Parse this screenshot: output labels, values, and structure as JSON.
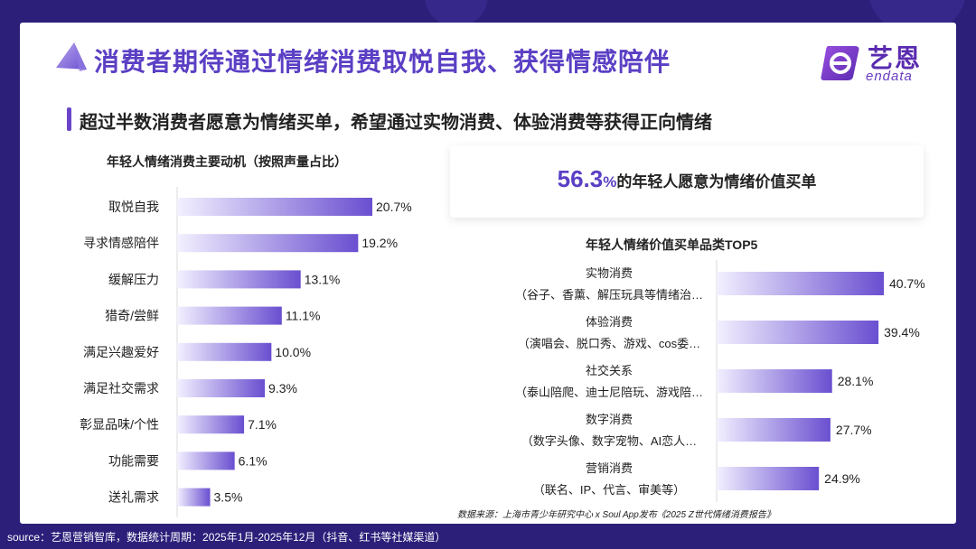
{
  "header": {
    "title": "消费者期待通过情绪消费取悦自我、获得情感陪伴",
    "subtitle": "超过半数消费者愿意为情绪买单，希望通过实物消费、体验消费等获得正向情绪",
    "logo_name": "艺恩",
    "logo_sub": "endata"
  },
  "highlight": {
    "number": "56.3",
    "unit": "%",
    "text": "的年轻人愿意为情绪价值买单"
  },
  "source_note": "数据来源：上海市青少年研究中心 x Soul App发布《2025 Z世代情绪消费报告》",
  "footer": "source：艺恩营销智库，数据统计周期：2025年1月-2025年12月（抖音、红书等社媒渠道）",
  "colors": {
    "accent": "#5b3fc4",
    "bar_dark": "#6a4fd0",
    "bar_light": "#f3f0ff",
    "background": "#2b1f7a"
  },
  "chart_data": [
    {
      "type": "bar",
      "orientation": "horizontal",
      "title": "年轻人情绪消费主要动机（按照声量占比）",
      "categories": [
        "取悦自我",
        "寻求情感陪伴",
        "缓解压力",
        "猎奇/尝鲜",
        "满足兴趣爱好",
        "满足社交需求",
        "彰显品味/个性",
        "功能需要",
        "送礼需求"
      ],
      "values": [
        20.7,
        19.2,
        13.1,
        11.1,
        10.0,
        9.3,
        7.1,
        6.1,
        3.5
      ],
      "value_labels": [
        "20.7%",
        "19.2%",
        "13.1%",
        "11.1%",
        "10.0%",
        "9.3%",
        "7.1%",
        "6.1%",
        "3.5%"
      ],
      "xlim": [
        0,
        20.7
      ]
    },
    {
      "type": "bar",
      "orientation": "horizontal",
      "title": "年轻人情绪价值买单品类TOP5",
      "categories": [
        "实物消费",
        "体验消费",
        "社交关系",
        "数字消费",
        "营销消费"
      ],
      "category_details": [
        "（谷子、香薰、解压玩具等情绪治…",
        "（演唱会、脱口秀、游戏、cos委…",
        "（泰山陪爬、迪士尼陪玩、游戏陪…",
        "（数字头像、数字宠物、AI恋人…",
        "（联名、IP、代言、审美等）"
      ],
      "values": [
        40.7,
        39.4,
        28.1,
        27.7,
        24.9
      ],
      "value_labels": [
        "40.7%",
        "39.4%",
        "28.1%",
        "27.7%",
        "24.9%"
      ],
      "xlim": [
        0,
        40.7
      ]
    }
  ]
}
